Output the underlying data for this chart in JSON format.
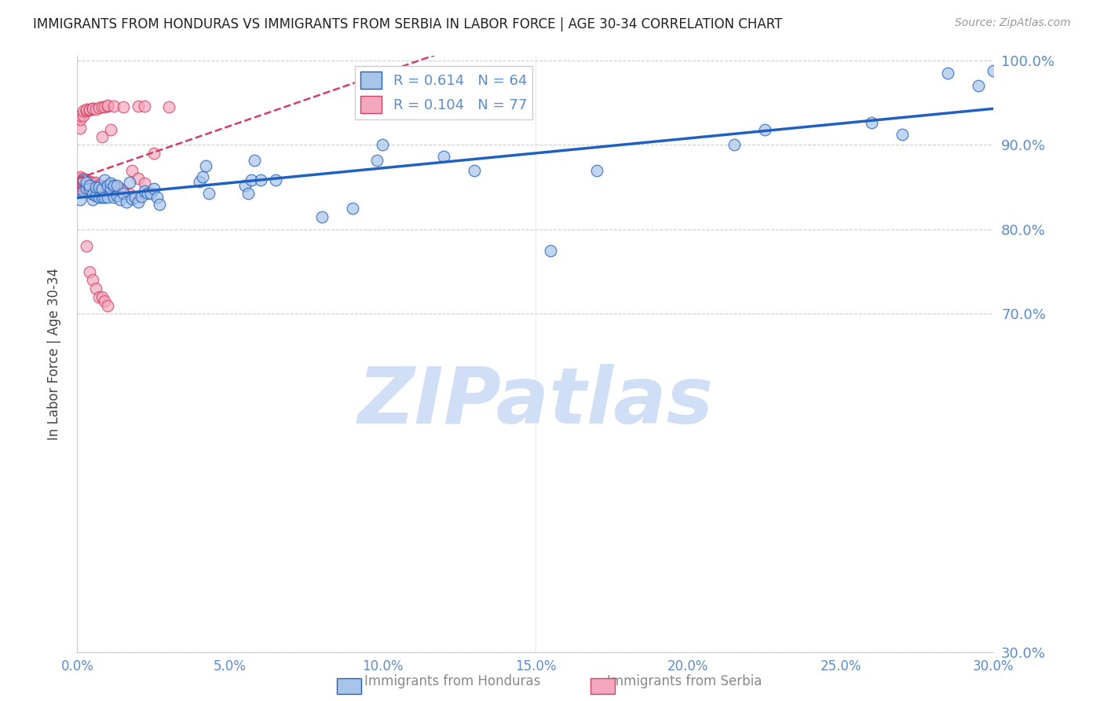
{
  "title": "IMMIGRANTS FROM HONDURAS VS IMMIGRANTS FROM SERBIA IN LABOR FORCE | AGE 30-34 CORRELATION CHART",
  "source": "Source: ZipAtlas.com",
  "ylabel": "In Labor Force | Age 30-34",
  "xlim": [
    0.0,
    0.3
  ],
  "ylim": [
    0.3,
    1.005
  ],
  "yticks": [
    0.3,
    0.7,
    0.8,
    0.9,
    1.0
  ],
  "ytick_labels": [
    "30.0%",
    "70.0%",
    "80.0%",
    "90.0%",
    "100.0%"
  ],
  "xticks": [
    0.0,
    0.05,
    0.1,
    0.15,
    0.2,
    0.25,
    0.3
  ],
  "xtick_labels": [
    "0.0%",
    "5.0%",
    "10.0%",
    "15.0%",
    "20.0%",
    "25.0%",
    "30.0%"
  ],
  "blue_R": 0.614,
  "blue_N": 64,
  "pink_R": 0.104,
  "pink_N": 77,
  "blue_color": "#A8C4E8",
  "pink_color": "#F4A8C0",
  "blue_line_color": "#2060C0",
  "pink_line_color": "#D04060",
  "axis_color": "#5B8CCC",
  "watermark": "ZIPatlas",
  "watermark_color": "#D0DFF5",
  "blue_points_x": [
    0.001,
    0.002,
    0.002,
    0.003,
    0.003,
    0.004,
    0.004,
    0.005,
    0.005,
    0.006,
    0.006,
    0.007,
    0.007,
    0.008,
    0.008,
    0.009,
    0.009,
    0.01,
    0.01,
    0.011,
    0.011,
    0.012,
    0.012,
    0.013,
    0.013,
    0.014,
    0.015,
    0.016,
    0.017,
    0.018,
    0.019,
    0.02,
    0.021,
    0.022,
    0.023,
    0.024,
    0.025,
    0.026,
    0.027,
    0.04,
    0.041,
    0.042,
    0.043,
    0.055,
    0.056,
    0.057,
    0.058,
    0.098,
    0.1,
    0.12,
    0.155,
    0.215,
    0.225,
    0.26,
    0.27,
    0.285,
    0.295,
    0.3,
    0.06,
    0.065,
    0.08,
    0.09,
    0.13,
    0.17
  ],
  "blue_points_y": [
    0.835,
    0.845,
    0.858,
    0.848,
    0.856,
    0.848,
    0.852,
    0.835,
    0.842,
    0.84,
    0.85,
    0.838,
    0.85,
    0.838,
    0.848,
    0.838,
    0.858,
    0.838,
    0.852,
    0.848,
    0.855,
    0.838,
    0.852,
    0.84,
    0.852,
    0.835,
    0.843,
    0.832,
    0.856,
    0.836,
    0.838,
    0.832,
    0.839,
    0.845,
    0.843,
    0.843,
    0.848,
    0.838,
    0.83,
    0.857,
    0.862,
    0.875,
    0.843,
    0.852,
    0.843,
    0.858,
    0.882,
    0.882,
    0.9,
    0.886,
    0.775,
    0.9,
    0.918,
    0.926,
    0.912,
    0.985,
    0.97,
    0.988,
    0.858,
    0.858,
    0.815,
    0.825,
    0.87,
    0.87
  ],
  "pink_points_x": [
    0.0,
    0.0,
    0.0,
    0.0,
    0.001,
    0.001,
    0.001,
    0.001,
    0.001,
    0.001,
    0.001,
    0.002,
    0.002,
    0.002,
    0.002,
    0.002,
    0.002,
    0.003,
    0.003,
    0.003,
    0.003,
    0.003,
    0.004,
    0.004,
    0.004,
    0.004,
    0.005,
    0.005,
    0.005,
    0.006,
    0.006,
    0.006,
    0.007,
    0.007,
    0.008,
    0.009,
    0.01,
    0.011,
    0.012,
    0.013,
    0.014,
    0.015,
    0.017,
    0.018,
    0.02,
    0.022,
    0.025,
    0.001,
    0.001,
    0.001,
    0.002,
    0.002,
    0.003,
    0.003,
    0.004,
    0.004,
    0.005,
    0.005,
    0.006,
    0.007,
    0.008,
    0.009,
    0.01,
    0.01,
    0.012,
    0.015,
    0.02,
    0.022,
    0.03,
    0.003,
    0.004,
    0.005,
    0.006,
    0.007,
    0.008,
    0.009,
    0.01
  ],
  "pink_points_y": [
    0.858,
    0.855,
    0.855,
    0.86,
    0.848,
    0.852,
    0.855,
    0.857,
    0.858,
    0.86,
    0.862,
    0.85,
    0.852,
    0.854,
    0.856,
    0.858,
    0.86,
    0.85,
    0.852,
    0.854,
    0.856,
    0.858,
    0.85,
    0.852,
    0.854,
    0.857,
    0.85,
    0.852,
    0.856,
    0.851,
    0.854,
    0.856,
    0.849,
    0.853,
    0.91,
    0.85,
    0.85,
    0.918,
    0.852,
    0.85,
    0.848,
    0.845,
    0.842,
    0.87,
    0.86,
    0.855,
    0.89,
    0.92,
    0.93,
    0.935,
    0.935,
    0.94,
    0.94,
    0.942,
    0.941,
    0.942,
    0.943,
    0.943,
    0.942,
    0.944,
    0.945,
    0.945,
    0.946,
    0.947,
    0.946,
    0.945,
    0.946,
    0.946,
    0.945,
    0.78,
    0.75,
    0.74,
    0.73,
    0.72,
    0.72,
    0.715,
    0.71
  ]
}
